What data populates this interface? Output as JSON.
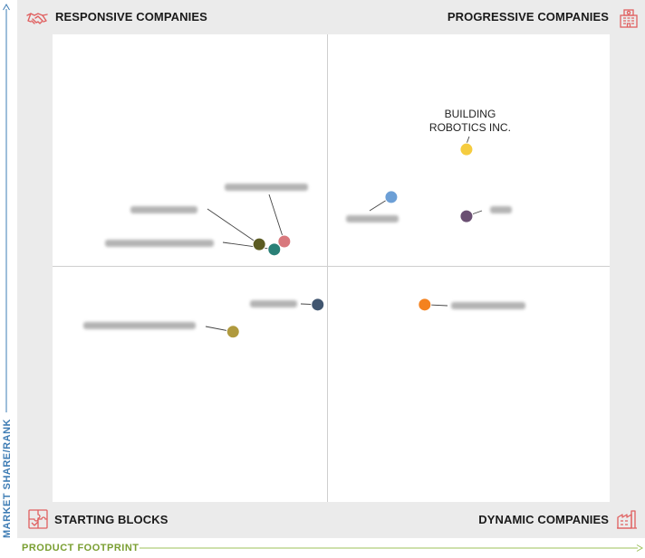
{
  "quadrants": {
    "top_left": "RESPONSIVE COMPANIES",
    "top_right": "PROGRESSIVE COMPANIES",
    "bottom_left": "STARTING BLOCKS",
    "bottom_right": "DYNAMIC COMPANIES"
  },
  "axes": {
    "y_label": "MARKET SHARE/RANK",
    "x_label": "PRODUCT FOOTPRINT"
  },
  "colors": {
    "y_axis": "#3e7cb4",
    "x_axis": "#7a9f32",
    "icon_red": "#e06060",
    "gridline": "#cfcfcf"
  },
  "icons": {
    "top_left": "handshake-icon",
    "top_right": "building-icon",
    "bottom_left": "puzzle-icon",
    "bottom_right": "factory-icon"
  },
  "chart_data": {
    "type": "scatter",
    "title": "",
    "xlabel": "PRODUCT FOOTPRINT",
    "ylabel": "MARKET SHARE/RANK",
    "xlim": [
      0,
      100
    ],
    "ylim": [
      0,
      100
    ],
    "quadrant_split": {
      "x": 50,
      "y": 50
    },
    "points": [
      {
        "label": "BUILDING ROBOTICS INC.",
        "x": 74.3,
        "y": 75.4,
        "color": "#f5cc3f",
        "readable": true
      },
      {
        "label": "",
        "x": 60.8,
        "y": 65.2,
        "color": "#6c9fd6",
        "readable": false
      },
      {
        "label": "",
        "x": 74.3,
        "y": 61.1,
        "color": "#6a4f72",
        "readable": false
      },
      {
        "label": "",
        "x": 41.6,
        "y": 55.7,
        "color": "#d8787d",
        "readable": false
      },
      {
        "label": "",
        "x": 37.1,
        "y": 55.1,
        "color": "#5b5b22",
        "readable": false
      },
      {
        "label": "",
        "x": 39.8,
        "y": 54.0,
        "color": "#2a8077",
        "readable": false
      },
      {
        "label": "",
        "x": 47.6,
        "y": 42.2,
        "color": "#415670",
        "readable": false
      },
      {
        "label": "",
        "x": 66.8,
        "y": 42.2,
        "color": "#f4821f",
        "readable": false
      },
      {
        "label": "",
        "x": 32.4,
        "y": 36.4,
        "color": "#b09a3e",
        "readable": false
      }
    ]
  }
}
